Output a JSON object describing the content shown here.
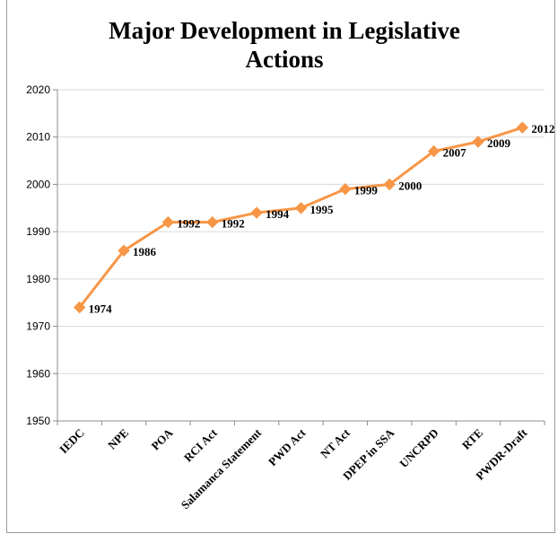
{
  "chart_data": {
    "type": "line",
    "title_lines": [
      "Major Development  in Legislative",
      "Actions"
    ],
    "xlabel": "",
    "ylabel": "",
    "categories": [
      "IEDC",
      "NPE",
      "POA",
      "RCI Act",
      "Salamanca Statement",
      "PWD Act",
      "NT Act",
      "DPEP in SSA",
      "UNCRPD",
      "RTE",
      "PWDR-Draft"
    ],
    "series": [
      {
        "values": [
          1974,
          1986,
          1992,
          1992,
          1994,
          1995,
          1999,
          2000,
          2007,
          2009,
          2012
        ]
      }
    ],
    "data_labels": [
      "1974",
      "1986",
      "1992",
      "1992",
      "1994",
      "1995",
      "1999",
      "2000",
      "2007",
      "2009",
      "2012"
    ],
    "ylim": [
      1950,
      2020
    ],
    "yticks": [
      1950,
      1960,
      1970,
      1980,
      1990,
      2000,
      2010,
      2020
    ],
    "grid": "horizontal",
    "legend": "none",
    "marker": "diamond",
    "line_color": "#f79646"
  }
}
